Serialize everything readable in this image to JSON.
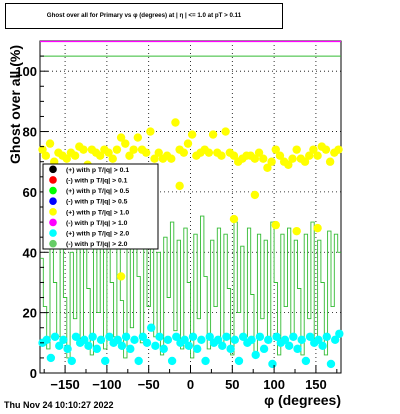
{
  "title": "Ghost over all for Primary vs φ (degrees) at | η | <= 1.0 at pT > 0.11",
  "timestamp": "Thu Nov 24 10:10:27 2022",
  "chart_data": {
    "type": "scatter",
    "xlabel": "φ (degrees)",
    "ylabel": "Ghost over all (%)",
    "xlim": [
      -180,
      180
    ],
    "ylim": [
      0,
      110
    ],
    "x_ticks": [
      "−150",
      "−100",
      "−50",
      "0",
      "50",
      "100",
      "150"
    ],
    "y_ticks": [
      "0",
      "20",
      "40",
      "60",
      "80",
      "100"
    ],
    "grid": true,
    "legend_placement": "left-middle",
    "legend": [
      {
        "label": "(+) with p T/|q| > 0.1",
        "color": "#000000"
      },
      {
        "label": "(-) with p T/|q| > 0.1",
        "color": "#ff0000"
      },
      {
        "label": "(+) with p T/|q| > 0.5",
        "color": "#00ff00"
      },
      {
        "label": "(-) with p T/|q| > 0.5",
        "color": "#0000ff"
      },
      {
        "label": "(+) with p T/|q| > 1.0",
        "color": "#ffff00"
      },
      {
        "label": "(-) with p T/|q| > 1.0",
        "color": "#ff00ff"
      },
      {
        "label": "(+) with p T/|q| > 2.0",
        "color": "#00ffff"
      },
      {
        "label": "(-) with p T/|q| > 2.0",
        "color": "#66cc66"
      }
    ],
    "series": [
      {
        "color": "#ffff00",
        "points": [
          [
            -177,
            74
          ],
          [
            -173,
            72
          ],
          [
            -168,
            76
          ],
          [
            -163,
            70
          ],
          [
            -158,
            73
          ],
          [
            -153,
            72
          ],
          [
            -148,
            71
          ],
          [
            -143,
            73
          ],
          [
            -138,
            72
          ],
          [
            -133,
            75
          ],
          [
            -128,
            74
          ],
          [
            -123,
            69
          ],
          [
            -118,
            74
          ],
          [
            -113,
            73
          ],
          [
            -108,
            72
          ],
          [
            -103,
            74
          ],
          [
            -98,
            73
          ],
          [
            -93,
            71
          ],
          [
            -88,
            74
          ],
          [
            -83,
            78
          ],
          [
            -78,
            76
          ],
          [
            -73,
            72
          ],
          [
            -68,
            74
          ],
          [
            -63,
            78
          ],
          [
            -58,
            74
          ],
          [
            -53,
            73
          ],
          [
            -48,
            80
          ],
          [
            -43,
            71
          ],
          [
            -38,
            73
          ],
          [
            -33,
            71
          ],
          [
            -28,
            72
          ],
          [
            -23,
            71
          ],
          [
            -18,
            83
          ],
          [
            -13,
            74
          ],
          [
            -8,
            73
          ],
          [
            -3,
            76
          ],
          [
            2,
            79
          ],
          [
            7,
            72
          ],
          [
            12,
            73
          ],
          [
            17,
            74
          ],
          [
            22,
            73
          ],
          [
            27,
            79
          ],
          [
            32,
            73
          ],
          [
            37,
            72
          ],
          [
            42,
            80
          ],
          [
            47,
            73
          ],
          [
            52,
            72
          ],
          [
            57,
            70
          ],
          [
            62,
            71
          ],
          [
            67,
            72
          ],
          [
            72,
            72
          ],
          [
            77,
            71
          ],
          [
            82,
            73
          ],
          [
            87,
            71
          ],
          [
            92,
            68
          ],
          [
            97,
            70
          ],
          [
            102,
            74
          ],
          [
            107,
            72
          ],
          [
            112,
            70
          ],
          [
            117,
            69
          ],
          [
            122,
            71
          ],
          [
            127,
            74
          ],
          [
            132,
            71
          ],
          [
            137,
            70
          ],
          [
            142,
            72
          ],
          [
            147,
            74
          ],
          [
            152,
            72
          ],
          [
            157,
            75
          ],
          [
            162,
            74
          ],
          [
            167,
            70
          ],
          [
            172,
            73
          ],
          [
            177,
            74
          ],
          [
            -83,
            32
          ],
          [
            -13,
            62
          ],
          [
            52,
            51
          ],
          [
            77,
            59
          ],
          [
            102,
            49
          ],
          [
            127,
            47
          ],
          [
            152,
            48
          ]
        ]
      },
      {
        "color": "#00ffff",
        "points": [
          [
            -177,
            10
          ],
          [
            -172,
            11
          ],
          [
            -167,
            5
          ],
          [
            -162,
            12
          ],
          [
            -157,
            9
          ],
          [
            -152,
            11
          ],
          [
            -147,
            8
          ],
          [
            -142,
            4
          ],
          [
            -137,
            12
          ],
          [
            -132,
            10
          ],
          [
            -127,
            11
          ],
          [
            -122,
            9
          ],
          [
            -117,
            12
          ],
          [
            -112,
            8
          ],
          [
            -107,
            11
          ],
          [
            -102,
            4
          ],
          [
            -97,
            12
          ],
          [
            -92,
            10
          ],
          [
            -87,
            11
          ],
          [
            -82,
            9
          ],
          [
            -77,
            12
          ],
          [
            -72,
            8
          ],
          [
            -67,
            11
          ],
          [
            -62,
            4
          ],
          [
            -57,
            12
          ],
          [
            -52,
            10
          ],
          [
            -47,
            15
          ],
          [
            -42,
            9
          ],
          [
            -37,
            12
          ],
          [
            -32,
            8
          ],
          [
            -27,
            11
          ],
          [
            -22,
            4
          ],
          [
            -17,
            12
          ],
          [
            -12,
            10
          ],
          [
            -7,
            11
          ],
          [
            -2,
            9
          ],
          [
            3,
            12
          ],
          [
            8,
            8
          ],
          [
            13,
            11
          ],
          [
            18,
            4
          ],
          [
            23,
            12
          ],
          [
            28,
            10
          ],
          [
            33,
            11
          ],
          [
            38,
            9
          ],
          [
            43,
            12
          ],
          [
            48,
            8
          ],
          [
            53,
            11
          ],
          [
            58,
            4
          ],
          [
            63,
            12
          ],
          [
            68,
            10
          ],
          [
            73,
            11
          ],
          [
            78,
            6
          ],
          [
            83,
            12
          ],
          [
            88,
            8
          ],
          [
            93,
            11
          ],
          [
            98,
            3
          ],
          [
            103,
            12
          ],
          [
            108,
            10
          ],
          [
            113,
            11
          ],
          [
            118,
            9
          ],
          [
            123,
            12
          ],
          [
            128,
            8
          ],
          [
            133,
            11
          ],
          [
            138,
            4
          ],
          [
            143,
            12
          ],
          [
            148,
            10
          ],
          [
            153,
            11
          ],
          [
            158,
            9
          ],
          [
            163,
            12
          ],
          [
            168,
            3
          ],
          [
            173,
            11
          ],
          [
            178,
            13
          ]
        ]
      }
    ],
    "step_line": {
      "color": "#33bb33",
      "bins": [
        [
          -180,
          38
        ],
        [
          -176,
          22
        ],
        [
          -172,
          8
        ],
        [
          -168,
          44
        ],
        [
          -164,
          30
        ],
        [
          -160,
          12
        ],
        [
          -156,
          48
        ],
        [
          -152,
          25
        ],
        [
          -148,
          5
        ],
        [
          -144,
          40
        ],
        [
          -140,
          18
        ],
        [
          -136,
          44
        ],
        [
          -132,
          10
        ],
        [
          -128,
          47
        ],
        [
          -124,
          28
        ],
        [
          -120,
          6
        ],
        [
          -116,
          45
        ],
        [
          -112,
          20
        ],
        [
          -108,
          42
        ],
        [
          -104,
          8
        ],
        [
          -100,
          46
        ],
        [
          -96,
          30
        ],
        [
          -92,
          12
        ],
        [
          -88,
          47
        ],
        [
          -84,
          24
        ],
        [
          -80,
          5
        ],
        [
          -76,
          44
        ],
        [
          -72,
          15
        ],
        [
          -68,
          48
        ],
        [
          -64,
          32
        ],
        [
          -60,
          10
        ],
        [
          -56,
          46
        ],
        [
          -52,
          22
        ],
        [
          -48,
          50
        ],
        [
          -44,
          12
        ],
        [
          -40,
          40
        ],
        [
          -36,
          6
        ],
        [
          -32,
          45
        ],
        [
          -28,
          25
        ],
        [
          -24,
          50
        ],
        [
          -20,
          14
        ],
        [
          -16,
          44
        ],
        [
          -12,
          8
        ],
        [
          -8,
          48
        ],
        [
          -4,
          30
        ],
        [
          0,
          5
        ],
        [
          4,
          46
        ],
        [
          8,
          18
        ],
        [
          12,
          52
        ],
        [
          16,
          32
        ],
        [
          20,
          8
        ],
        [
          24,
          44
        ],
        [
          28,
          22
        ],
        [
          32,
          48
        ],
        [
          36,
          10
        ],
        [
          40,
          46
        ],
        [
          44,
          28
        ],
        [
          48,
          6
        ],
        [
          52,
          50
        ],
        [
          56,
          20
        ],
        [
          60,
          42
        ],
        [
          64,
          12
        ],
        [
          68,
          48
        ],
        [
          72,
          26
        ],
        [
          76,
          6
        ],
        [
          80,
          46
        ],
        [
          84,
          18
        ],
        [
          88,
          44
        ],
        [
          92,
          10
        ],
        [
          96,
          50
        ],
        [
          100,
          30
        ],
        [
          104,
          6
        ],
        [
          108,
          46
        ],
        [
          112,
          22
        ],
        [
          116,
          48
        ],
        [
          120,
          12
        ],
        [
          124,
          44
        ],
        [
          128,
          28
        ],
        [
          132,
          6
        ],
        [
          136,
          46
        ],
        [
          140,
          18
        ],
        [
          144,
          50
        ],
        [
          148,
          10
        ],
        [
          152,
          44
        ],
        [
          156,
          30
        ],
        [
          160,
          6
        ],
        [
          164,
          47
        ],
        [
          168,
          22
        ],
        [
          172,
          46
        ],
        [
          176,
          40
        ],
        [
          180,
          40
        ]
      ]
    },
    "hline": {
      "value": 105,
      "color": "#33bb33"
    }
  }
}
